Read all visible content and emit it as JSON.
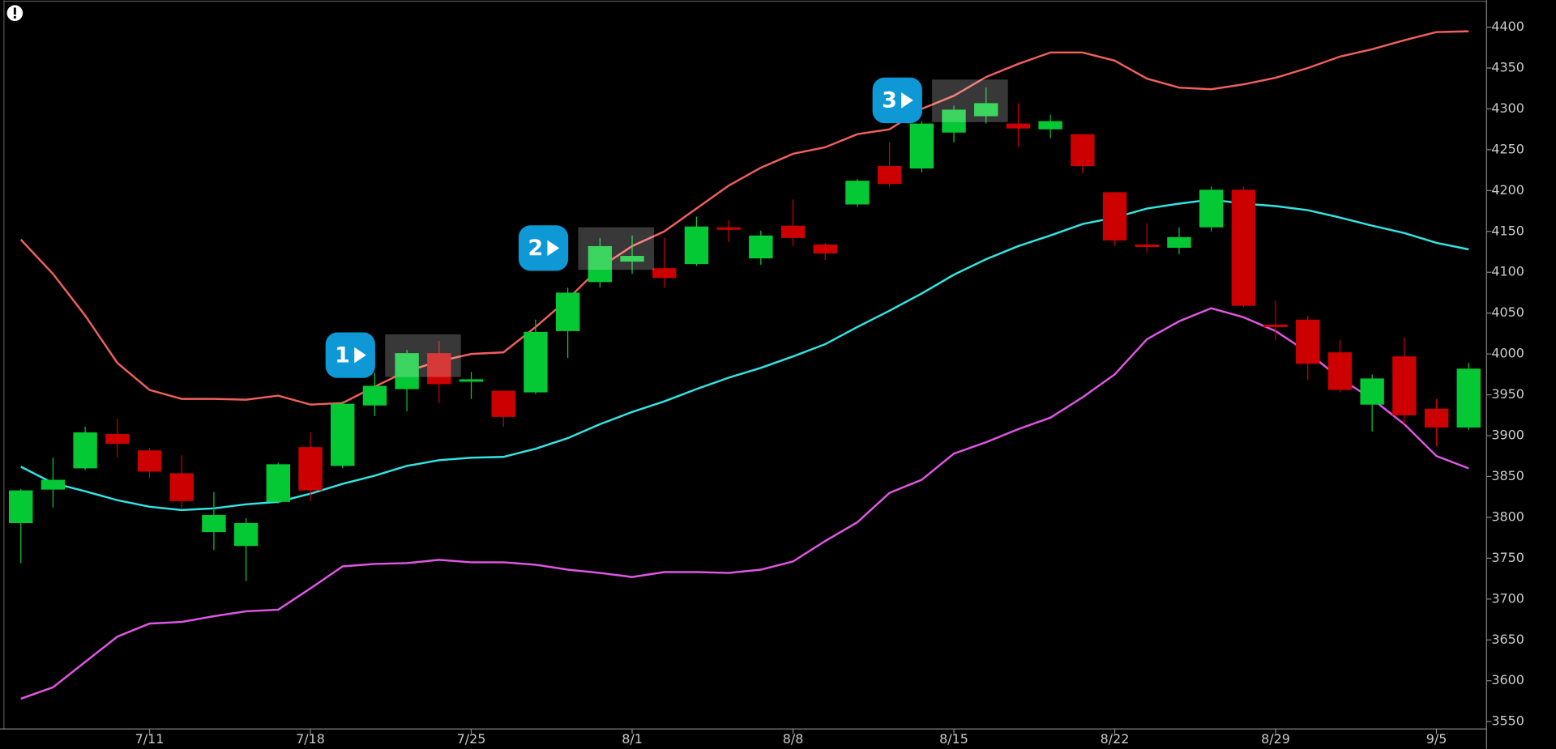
{
  "chart_data": {
    "type": "candlestick",
    "categories": [
      null,
      null,
      null,
      null,
      "7/11",
      null,
      null,
      null,
      null,
      "7/18",
      null,
      null,
      null,
      null,
      "7/25",
      null,
      null,
      null,
      null,
      "8/1",
      null,
      null,
      null,
      null,
      "8/8",
      null,
      null,
      null,
      null,
      "8/15",
      null,
      null,
      null,
      null,
      "8/22",
      null,
      null,
      null,
      null,
      "8/29",
      null,
      null,
      null,
      null,
      "9/5",
      null
    ],
    "open": [
      3793,
      3834,
      3860,
      3902,
      3882,
      3854,
      3782,
      3765,
      3819,
      3886,
      3863,
      3937,
      3957,
      4001,
      3966,
      3955,
      3953,
      4028,
      4088,
      4113,
      4105,
      4110,
      4155,
      4117,
      4157,
      4134,
      4183,
      4230,
      4227,
      4271,
      4291,
      4282,
      4275,
      4269,
      4198,
      4134,
      4130,
      4155,
      4201,
      4036,
      4042,
      4002,
      3938,
      3997,
      3933,
      3910
    ],
    "high": [
      3835,
      3873,
      3911,
      3921,
      3885,
      3876,
      3831,
      3799,
      3867,
      3904,
      3942,
      3977,
      4005,
      4016,
      3978,
      3955,
      4042,
      4081,
      4142,
      4145,
      4142,
      4168,
      4164,
      4151,
      4189,
      4136,
      4214,
      4259,
      4285,
      4304,
      4326,
      4307,
      4293,
      4269,
      4198,
      4160,
      4155,
      4205,
      4205,
      4065,
      4047,
      4017,
      3975,
      4020,
      3945,
      3989
    ],
    "low": [
      3744,
      3812,
      3858,
      3873,
      3848,
      3811,
      3760,
      3722,
      3817,
      3820,
      3860,
      3924,
      3930,
      3940,
      3945,
      3911,
      3951,
      3995,
      4081,
      4098,
      4081,
      4108,
      4137,
      4109,
      4132,
      4115,
      4180,
      4204,
      4222,
      4259,
      4282,
      4254,
      4264,
      4221,
      4132,
      4125,
      4122,
      4150,
      4057,
      4017,
      3968,
      3953,
      3905,
      3914,
      3887,
      3907
    ],
    "close": [
      3833,
      3846,
      3904,
      3890,
      3856,
      3820,
      3803,
      3793,
      3865,
      3833,
      3939,
      3961,
      4001,
      3963,
      3969,
      3923,
      4027,
      4075,
      4132,
      4120,
      4093,
      4156,
      4152,
      4145,
      4142,
      4123,
      4212,
      4208,
      4282,
      4299,
      4307,
      4276,
      4285,
      4230,
      4139,
      4131,
      4143,
      4201,
      4059,
      4033,
      3988,
      3956,
      3970,
      3925,
      3910,
      3982
    ],
    "up_color": "#04c934",
    "down_color": "#cc0000",
    "lines": [
      {
        "color": "#f0605c",
        "values": [
          4140,
          4098,
          4047,
          3989,
          3956,
          3945,
          3945,
          3944,
          3949,
          3938,
          3940,
          3960,
          3979,
          3991,
          4000,
          4002,
          4033,
          4067,
          4106,
          4132,
          4150,
          4178,
          4206,
          4228,
          4245,
          4253,
          4269,
          4275,
          4300,
          4316,
          4339,
          4355,
          4369,
          4369,
          4359,
          4337,
          4326,
          4324,
          4330,
          4338,
          4350,
          4364,
          4373,
          4384,
          4394,
          4395
        ]
      },
      {
        "color": "#33e4e4",
        "values": [
          3862,
          3842,
          3832,
          3821,
          3813,
          3809,
          3811,
          3816,
          3819,
          3829,
          3841,
          3851,
          3863,
          3870,
          3873,
          3874,
          3884,
          3897,
          3914,
          3929,
          3942,
          3957,
          3971,
          3983,
          3997,
          4012,
          4033,
          4053,
          4074,
          4097,
          4116,
          4132,
          4145,
          4159,
          4167,
          4178,
          4184,
          4189,
          4184,
          4181,
          4176,
          4167,
          4157,
          4148,
          4136,
          4128
        ]
      },
      {
        "color": "#e256e6",
        "values": [
          3578,
          3592,
          3623,
          3654,
          3670,
          3672,
          3679,
          3685,
          3687,
          3713,
          3740,
          3743,
          3744,
          3748,
          3745,
          3745,
          3742,
          3736,
          3732,
          3727,
          3733,
          3733,
          3732,
          3736,
          3746,
          3771,
          3794,
          3830,
          3846,
          3878,
          3892,
          3908,
          3922,
          3947,
          3975,
          4018,
          4040,
          4056,
          4045,
          4028,
          4002,
          3970,
          3945,
          3914,
          3875,
          3860
        ]
      }
    ],
    "ylim": [
      3541,
      4433
    ],
    "yticks": [
      3550,
      3600,
      3650,
      3700,
      3750,
      3800,
      3850,
      3900,
      3950,
      4000,
      4050,
      4100,
      4150,
      4200,
      4250,
      4300,
      4350,
      4400
    ],
    "annotations": [
      "1",
      "2",
      "3"
    ]
  }
}
